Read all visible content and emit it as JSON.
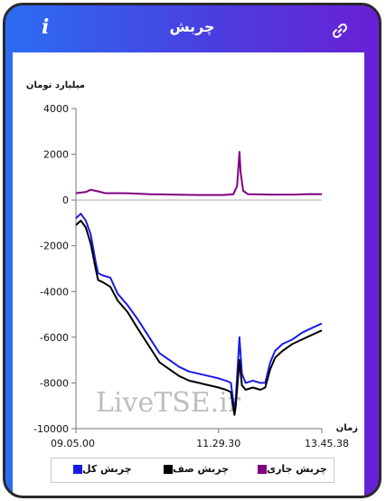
{
  "header": {
    "title": "چربش",
    "info_label": "i",
    "colors": {
      "gradient_start": "#2b6df3",
      "gradient_end": "#6a1fd6"
    }
  },
  "chart_data": {
    "type": "line",
    "ylabel": "میلیارد تومان",
    "xlabel": "زمان",
    "ylim": [
      -10000,
      4000
    ],
    "yticks": [
      4000,
      2000,
      0,
      -2000,
      -4000,
      -6000,
      -8000,
      -10000
    ],
    "yticklabels": [
      "4000",
      "2000",
      "0",
      "-2000",
      "-4000",
      "-6000",
      "-8000",
      "-10000"
    ],
    "xticklabels": [
      "09.05.00",
      "11.29.30",
      "13.45.38"
    ],
    "grid": false,
    "legend_position": "bottom",
    "series": [
      {
        "name": "چربش کل",
        "color": "#1a1ae6",
        "points": [
          [
            0,
            -800
          ],
          [
            0.02,
            -600
          ],
          [
            0.04,
            -900
          ],
          [
            0.06,
            -1500
          ],
          [
            0.08,
            -2700
          ],
          [
            0.09,
            -3200
          ],
          [
            0.11,
            -3300
          ],
          [
            0.14,
            -3400
          ],
          [
            0.17,
            -4100
          ],
          [
            0.21,
            -4600
          ],
          [
            0.25,
            -5200
          ],
          [
            0.28,
            -5700
          ],
          [
            0.31,
            -6200
          ],
          [
            0.34,
            -6700
          ],
          [
            0.38,
            -7000
          ],
          [
            0.42,
            -7300
          ],
          [
            0.46,
            -7500
          ],
          [
            0.5,
            -7600
          ],
          [
            0.54,
            -7700
          ],
          [
            0.58,
            -7800
          ],
          [
            0.61,
            -7900
          ],
          [
            0.63,
            -8000
          ],
          [
            0.645,
            -9200
          ],
          [
            0.65,
            -8700
          ],
          [
            0.665,
            -6000
          ],
          [
            0.675,
            -7600
          ],
          [
            0.69,
            -8000
          ],
          [
            0.72,
            -7900
          ],
          [
            0.75,
            -8000
          ],
          [
            0.77,
            -8000
          ],
          [
            0.79,
            -7100
          ],
          [
            0.81,
            -6600
          ],
          [
            0.84,
            -6300
          ],
          [
            0.88,
            -6100
          ],
          [
            0.92,
            -5800
          ],
          [
            0.96,
            -5600
          ],
          [
            1.0,
            -5400
          ]
        ]
      },
      {
        "name": "چربش صف",
        "color": "#000000",
        "points": [
          [
            0,
            -1100
          ],
          [
            0.02,
            -900
          ],
          [
            0.04,
            -1200
          ],
          [
            0.06,
            -1900
          ],
          [
            0.08,
            -3000
          ],
          [
            0.09,
            -3500
          ],
          [
            0.11,
            -3600
          ],
          [
            0.14,
            -3800
          ],
          [
            0.17,
            -4400
          ],
          [
            0.21,
            -4900
          ],
          [
            0.25,
            -5600
          ],
          [
            0.28,
            -6100
          ],
          [
            0.31,
            -6600
          ],
          [
            0.34,
            -7100
          ],
          [
            0.38,
            -7400
          ],
          [
            0.42,
            -7700
          ],
          [
            0.46,
            -7900
          ],
          [
            0.5,
            -8000
          ],
          [
            0.54,
            -8100
          ],
          [
            0.58,
            -8200
          ],
          [
            0.61,
            -8300
          ],
          [
            0.63,
            -8400
          ],
          [
            0.645,
            -9400
          ],
          [
            0.65,
            -9000
          ],
          [
            0.665,
            -7000
          ],
          [
            0.675,
            -8100
          ],
          [
            0.69,
            -8300
          ],
          [
            0.72,
            -8200
          ],
          [
            0.75,
            -8300
          ],
          [
            0.77,
            -8200
          ],
          [
            0.79,
            -7400
          ],
          [
            0.81,
            -6900
          ],
          [
            0.84,
            -6600
          ],
          [
            0.88,
            -6300
          ],
          [
            0.92,
            -6100
          ],
          [
            0.96,
            -5900
          ],
          [
            1.0,
            -5700
          ]
        ]
      },
      {
        "name": "چربش جاری",
        "color": "#800080",
        "points": [
          [
            0,
            300
          ],
          [
            0.04,
            350
          ],
          [
            0.06,
            450
          ],
          [
            0.08,
            400
          ],
          [
            0.12,
            300
          ],
          [
            0.2,
            300
          ],
          [
            0.3,
            250
          ],
          [
            0.4,
            230
          ],
          [
            0.5,
            220
          ],
          [
            0.6,
            220
          ],
          [
            0.64,
            250
          ],
          [
            0.655,
            600
          ],
          [
            0.66,
            1300
          ],
          [
            0.665,
            2100
          ],
          [
            0.67,
            1200
          ],
          [
            0.68,
            400
          ],
          [
            0.7,
            250
          ],
          [
            0.8,
            230
          ],
          [
            0.9,
            240
          ],
          [
            0.95,
            260
          ],
          [
            1.0,
            250
          ]
        ]
      }
    ],
    "watermark": "LiveTSE.ir"
  }
}
